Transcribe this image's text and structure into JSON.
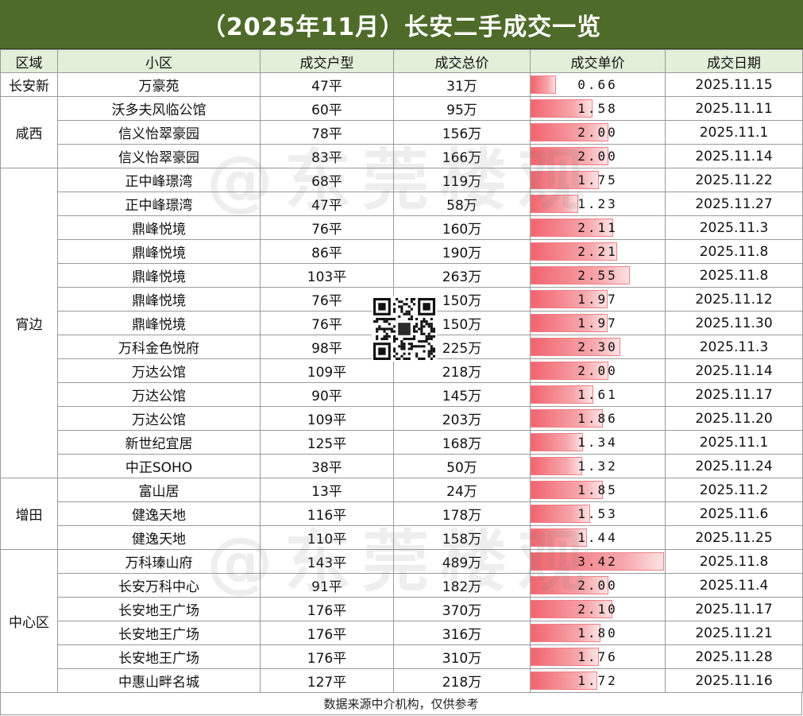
{
  "title": "（2025年11月）长安二手成交一览",
  "watermark": "@东莞楼观",
  "footer": "数据来源中介机构，仅供参考",
  "colors": {
    "header_bg": "#4f6b2a",
    "column_header_bg": "#e2efd9",
    "bar": "#f2646e"
  },
  "chart_data": {
    "type": "table",
    "columns": [
      "区域",
      "小区",
      "成交户型",
      "成交总价",
      "成交单价",
      "成交日期"
    ],
    "bar_column": "成交单价",
    "bar_max": 3.42,
    "groups": [
      {
        "region": "长安新",
        "rows": [
          {
            "community": "万豪苑",
            "size": "47平",
            "total": "31万",
            "unit_price": "0.66",
            "unit_value": 0.66,
            "date": "2025.11.15"
          }
        ]
      },
      {
        "region": "咸西",
        "rows": [
          {
            "community": "沃多夫风临公馆",
            "size": "60平",
            "total": "95万",
            "unit_price": "1.58",
            "unit_value": 1.58,
            "date": "2025.11.11"
          },
          {
            "community": "信义怡翠豪园",
            "size": "78平",
            "total": "156万",
            "unit_price": "2.00",
            "unit_value": 2.0,
            "date": "2025.11.1"
          },
          {
            "community": "信义怡翠豪园",
            "size": "83平",
            "total": "166万",
            "unit_price": "2.00",
            "unit_value": 2.0,
            "date": "2025.11.14"
          }
        ]
      },
      {
        "region": "宵边",
        "rows": [
          {
            "community": "正中峰璟湾",
            "size": "68平",
            "total": "119万",
            "unit_price": "1.75",
            "unit_value": 1.75,
            "date": "2025.11.22"
          },
          {
            "community": "正中峰璟湾",
            "size": "47平",
            "total": "58万",
            "unit_price": "1.23",
            "unit_value": 1.23,
            "date": "2025.11.27"
          },
          {
            "community": "鼎峰悦境",
            "size": "76平",
            "total": "160万",
            "unit_price": "2.11",
            "unit_value": 2.11,
            "date": "2025.11.3"
          },
          {
            "community": "鼎峰悦境",
            "size": "86平",
            "total": "190万",
            "unit_price": "2.21",
            "unit_value": 2.21,
            "date": "2025.11.8"
          },
          {
            "community": "鼎峰悦境",
            "size": "103平",
            "total": "263万",
            "unit_price": "2.55",
            "unit_value": 2.55,
            "date": "2025.11.8"
          },
          {
            "community": "鼎峰悦境",
            "size": "76平",
            "total": "150万",
            "unit_price": "1.97",
            "unit_value": 1.97,
            "date": "2025.11.12"
          },
          {
            "community": "鼎峰悦境",
            "size": "76平",
            "total": "150万",
            "unit_price": "1.97",
            "unit_value": 1.97,
            "date": "2025.11.30"
          },
          {
            "community": "万科金色悦府",
            "size": "98平",
            "total": "225万",
            "unit_price": "2.30",
            "unit_value": 2.3,
            "date": "2025.11.3"
          },
          {
            "community": "万达公馆",
            "size": "109平",
            "total": "218万",
            "unit_price": "2.00",
            "unit_value": 2.0,
            "date": "2025.11.14"
          },
          {
            "community": "万达公馆",
            "size": "90平",
            "total": "145万",
            "unit_price": "1.61",
            "unit_value": 1.61,
            "date": "2025.11.17"
          },
          {
            "community": "万达公馆",
            "size": "109平",
            "total": "203万",
            "unit_price": "1.86",
            "unit_value": 1.86,
            "date": "2025.11.20"
          },
          {
            "community": "新世纪宜居",
            "size": "125平",
            "total": "168万",
            "unit_price": "1.34",
            "unit_value": 1.34,
            "date": "2025.11.1"
          },
          {
            "community": "中正SOHO",
            "size": "38平",
            "total": "50万",
            "unit_price": "1.32",
            "unit_value": 1.32,
            "date": "2025.11.24"
          }
        ]
      },
      {
        "region": "增田",
        "rows": [
          {
            "community": "富山居",
            "size": "13平",
            "total": "24万",
            "unit_price": "1.85",
            "unit_value": 1.85,
            "date": "2025.11.2"
          },
          {
            "community": "健逸天地",
            "size": "116平",
            "total": "178万",
            "unit_price": "1.53",
            "unit_value": 1.53,
            "date": "2025.11.6"
          },
          {
            "community": "健逸天地",
            "size": "110平",
            "total": "158万",
            "unit_price": "1.44",
            "unit_value": 1.44,
            "date": "2025.11.25"
          }
        ]
      },
      {
        "region": "中心区",
        "rows": [
          {
            "community": "万科瑧山府",
            "size": "143平",
            "total": "489万",
            "unit_price": "3.42",
            "unit_value": 3.42,
            "date": "2025.11.8"
          },
          {
            "community": "长安万科中心",
            "size": "91平",
            "total": "182万",
            "unit_price": "2.00",
            "unit_value": 2.0,
            "date": "2025.11.4"
          },
          {
            "community": "长安地王广场",
            "size": "176平",
            "total": "370万",
            "unit_price": "2.10",
            "unit_value": 2.1,
            "date": "2025.11.17"
          },
          {
            "community": "长安地王广场",
            "size": "176平",
            "total": "316万",
            "unit_price": "1.80",
            "unit_value": 1.8,
            "date": "2025.11.21"
          },
          {
            "community": "长安地王广场",
            "size": "176平",
            "total": "310万",
            "unit_price": "1.76",
            "unit_value": 1.76,
            "date": "2025.11.28"
          },
          {
            "community": "中惠山畔名城",
            "size": "127平",
            "total": "218万",
            "unit_price": "1.72",
            "unit_value": 1.72,
            "date": "2025.11.16"
          }
        ]
      }
    ]
  }
}
